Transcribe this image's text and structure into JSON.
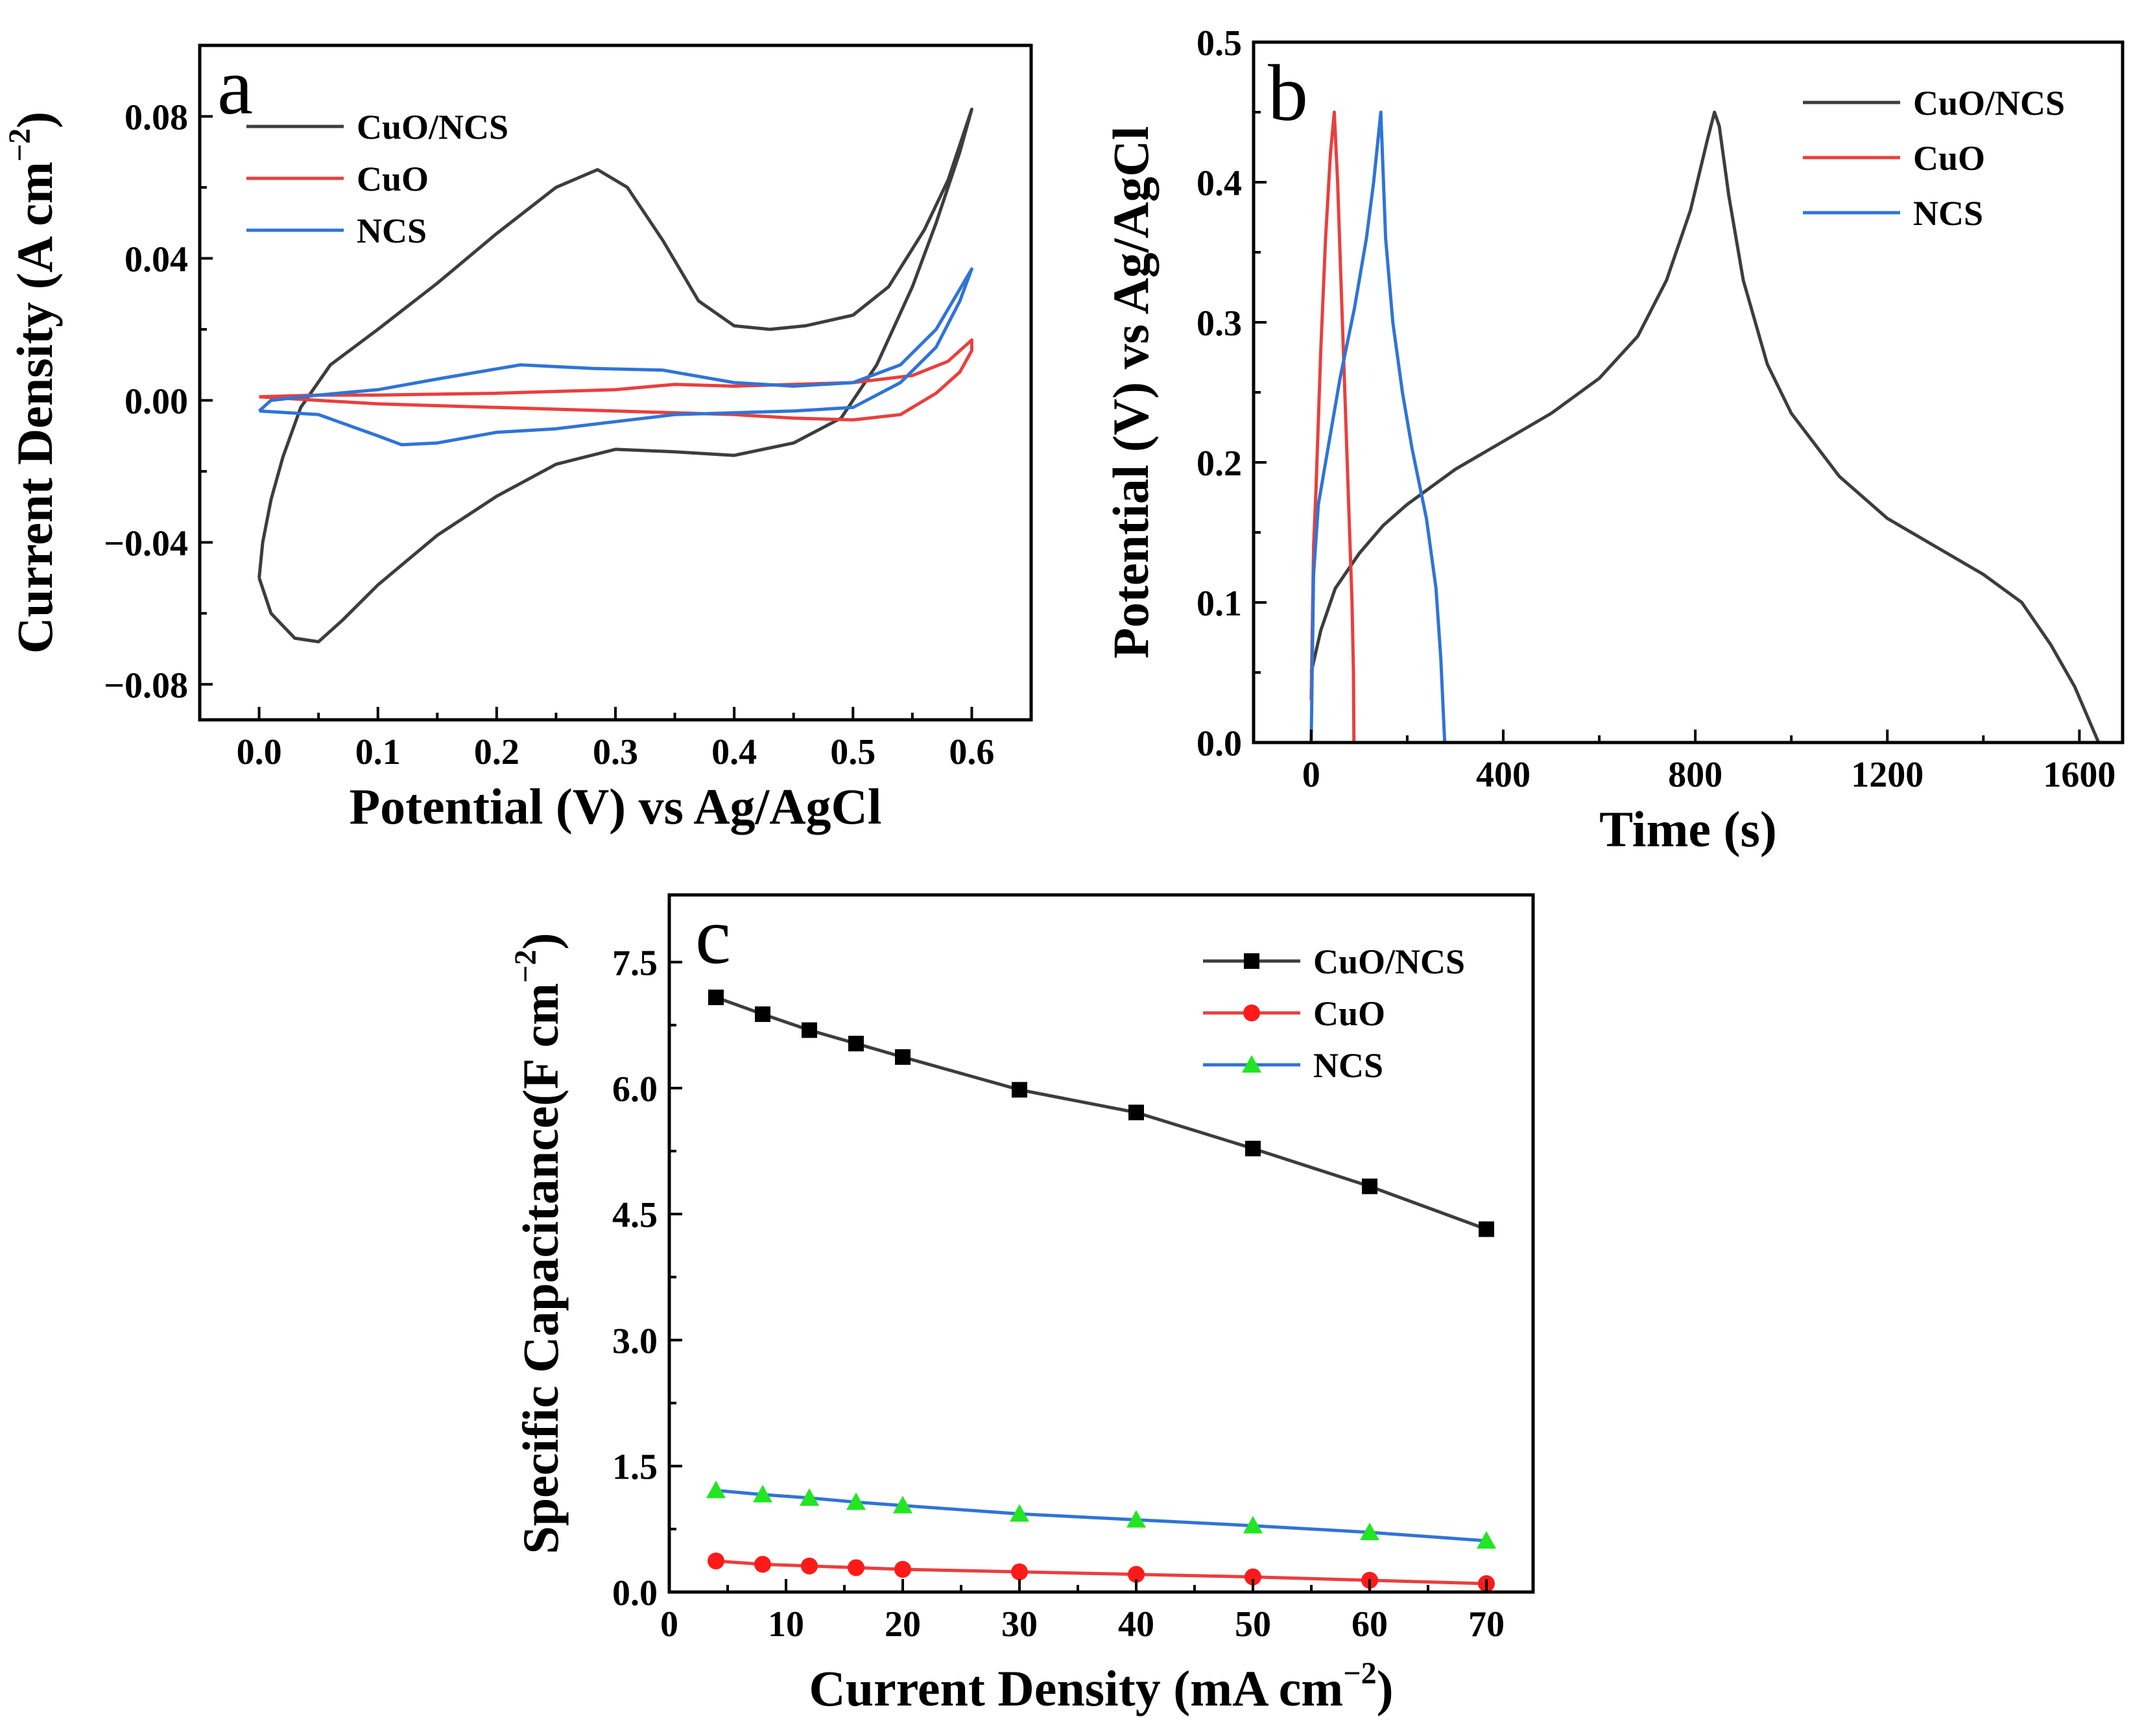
{
  "figure_title": "",
  "chart_data": [
    {
      "id": "a",
      "type": "line",
      "panel_label": "a",
      "title": "",
      "xlabel": "Potential (V) vs Ag/AgCl",
      "ylabel": "Current Density (A cm",
      "ylabel_sup": "−2",
      "ylabel_close": ")",
      "xlim": [
        -0.05,
        0.65
      ],
      "ylim": [
        -0.09,
        0.1
      ],
      "xticks": [
        0.0,
        0.1,
        0.2,
        0.3,
        0.4,
        0.5,
        0.6
      ],
      "xtick_labels": [
        "0.0",
        "0.1",
        "0.2",
        "0.3",
        "0.4",
        "0.5",
        "0.6"
      ],
      "yticks": [
        -0.08,
        -0.04,
        0.0,
        0.04,
        0.08
      ],
      "ytick_labels": [
        "−0.08",
        "−0.04",
        "0.00",
        "0.04",
        "0.08"
      ],
      "grid": false,
      "legend_position": "top-left",
      "series": [
        {
          "name": "CuO/NCS",
          "color": "#3d3d3d",
          "points": [
            [
              0.0,
              -0.05
            ],
            [
              0.003,
              -0.04
            ],
            [
              0.01,
              -0.028
            ],
            [
              0.02,
              -0.016
            ],
            [
              0.035,
              -0.002
            ],
            [
              0.06,
              0.01
            ],
            [
              0.1,
              0.02
            ],
            [
              0.15,
              0.033
            ],
            [
              0.2,
              0.047
            ],
            [
              0.25,
              0.06
            ],
            [
              0.285,
              0.065
            ],
            [
              0.31,
              0.06
            ],
            [
              0.34,
              0.045
            ],
            [
              0.37,
              0.028
            ],
            [
              0.4,
              0.021
            ],
            [
              0.43,
              0.02
            ],
            [
              0.46,
              0.021
            ],
            [
              0.5,
              0.024
            ],
            [
              0.53,
              0.032
            ],
            [
              0.56,
              0.048
            ],
            [
              0.58,
              0.062
            ],
            [
              0.6,
              0.082
            ],
            [
              0.59,
              0.07
            ],
            [
              0.57,
              0.05
            ],
            [
              0.55,
              0.032
            ],
            [
              0.52,
              0.01
            ],
            [
              0.49,
              -0.005
            ],
            [
              0.45,
              -0.012
            ],
            [
              0.4,
              -0.0155
            ],
            [
              0.35,
              -0.0145
            ],
            [
              0.3,
              -0.0138
            ],
            [
              0.25,
              -0.018
            ],
            [
              0.2,
              -0.027
            ],
            [
              0.15,
              -0.038
            ],
            [
              0.1,
              -0.052
            ],
            [
              0.07,
              -0.062
            ],
            [
              0.05,
              -0.068
            ],
            [
              0.03,
              -0.067
            ],
            [
              0.01,
              -0.06
            ],
            [
              0.0,
              -0.05
            ]
          ]
        },
        {
          "name": "CuO",
          "color": "#e8403e",
          "points": [
            [
              0.0,
              0.001
            ],
            [
              0.05,
              0.0015
            ],
            [
              0.1,
              0.0015
            ],
            [
              0.2,
              0.002
            ],
            [
              0.3,
              0.003
            ],
            [
              0.35,
              0.0045
            ],
            [
              0.4,
              0.004
            ],
            [
              0.45,
              0.0045
            ],
            [
              0.5,
              0.005
            ],
            [
              0.55,
              0.007
            ],
            [
              0.58,
              0.011
            ],
            [
              0.6,
              0.017
            ],
            [
              0.6,
              0.014
            ],
            [
              0.59,
              0.008
            ],
            [
              0.57,
              0.002
            ],
            [
              0.54,
              -0.004
            ],
            [
              0.5,
              -0.0055
            ],
            [
              0.45,
              -0.005
            ],
            [
              0.4,
              -0.004
            ],
            [
              0.3,
              -0.003
            ],
            [
              0.2,
              -0.002
            ],
            [
              0.1,
              -0.001
            ],
            [
              0.05,
              0.0
            ],
            [
              0.0,
              0.001
            ]
          ]
        },
        {
          "name": "NCS",
          "color": "#2f74d6",
          "points": [
            [
              0.0,
              -0.003
            ],
            [
              0.01,
              0.0
            ],
            [
              0.05,
              0.0015
            ],
            [
              0.1,
              0.003
            ],
            [
              0.15,
              0.006
            ],
            [
              0.22,
              0.01
            ],
            [
              0.28,
              0.009
            ],
            [
              0.34,
              0.0085
            ],
            [
              0.4,
              0.005
            ],
            [
              0.45,
              0.004
            ],
            [
              0.5,
              0.005
            ],
            [
              0.54,
              0.01
            ],
            [
              0.57,
              0.02
            ],
            [
              0.6,
              0.037
            ],
            [
              0.59,
              0.028
            ],
            [
              0.57,
              0.015
            ],
            [
              0.54,
              0.005
            ],
            [
              0.5,
              -0.002
            ],
            [
              0.45,
              -0.003
            ],
            [
              0.4,
              -0.0035
            ],
            [
              0.35,
              -0.004
            ],
            [
              0.3,
              -0.006
            ],
            [
              0.25,
              -0.008
            ],
            [
              0.2,
              -0.009
            ],
            [
              0.15,
              -0.012
            ],
            [
              0.12,
              -0.0125
            ],
            [
              0.1,
              -0.01
            ],
            [
              0.05,
              -0.004
            ],
            [
              0.0,
              -0.003
            ]
          ]
        }
      ]
    },
    {
      "id": "b",
      "type": "line",
      "panel_label": "b",
      "title": "",
      "xlabel": "Time (s)",
      "ylabel": "Potential (V) vs Ag/AgCl",
      "xlim": [
        -120,
        1690
      ],
      "ylim": [
        0.0,
        0.5
      ],
      "xticks": [
        0,
        400,
        800,
        1200,
        1600
      ],
      "xtick_labels": [
        "0",
        "400",
        "800",
        "1200",
        "1600"
      ],
      "yticks": [
        0.0,
        0.1,
        0.2,
        0.3,
        0.4,
        0.5
      ],
      "ytick_labels": [
        "0.0",
        "0.1",
        "0.2",
        "0.3",
        "0.4",
        "0.5"
      ],
      "grid": false,
      "legend_position": "top-right",
      "series": [
        {
          "name": "CuO/NCS",
          "color": "#3d3d3d",
          "points": [
            [
              0,
              0.05
            ],
            [
              20,
              0.08
            ],
            [
              50,
              0.11
            ],
            [
              100,
              0.135
            ],
            [
              150,
              0.155
            ],
            [
              200,
              0.17
            ],
            [
              300,
              0.195
            ],
            [
              400,
              0.215
            ],
            [
              500,
              0.235
            ],
            [
              600,
              0.26
            ],
            [
              680,
              0.29
            ],
            [
              740,
              0.33
            ],
            [
              790,
              0.38
            ],
            [
              825,
              0.43
            ],
            [
              840,
              0.45
            ],
            [
              850,
              0.44
            ],
            [
              870,
              0.39
            ],
            [
              900,
              0.33
            ],
            [
              950,
              0.27
            ],
            [
              1000,
              0.235
            ],
            [
              1100,
              0.19
            ],
            [
              1200,
              0.16
            ],
            [
              1300,
              0.14
            ],
            [
              1400,
              0.12
            ],
            [
              1480,
              0.1
            ],
            [
              1540,
              0.07
            ],
            [
              1590,
              0.04
            ],
            [
              1640,
              0.0
            ]
          ]
        },
        {
          "name": "CuO",
          "color": "#e8403e",
          "points": [
            [
              0,
              0.03
            ],
            [
              5,
              0.14
            ],
            [
              10,
              0.18
            ],
            [
              20,
              0.28
            ],
            [
              30,
              0.36
            ],
            [
              40,
              0.42
            ],
            [
              48,
              0.45
            ],
            [
              55,
              0.4
            ],
            [
              62,
              0.33
            ],
            [
              70,
              0.25
            ],
            [
              78,
              0.17
            ],
            [
              85,
              0.1
            ],
            [
              88,
              0.05
            ],
            [
              89,
              0.0
            ]
          ]
        },
        {
          "name": "NCS",
          "color": "#2f74d6",
          "points": [
            [
              0,
              0.0
            ],
            [
              5,
              0.12
            ],
            [
              15,
              0.17
            ],
            [
              30,
              0.2
            ],
            [
              60,
              0.26
            ],
            [
              90,
              0.31
            ],
            [
              115,
              0.36
            ],
            [
              130,
              0.4
            ],
            [
              145,
              0.45
            ],
            [
              155,
              0.36
            ],
            [
              170,
              0.3
            ],
            [
              190,
              0.25
            ],
            [
              210,
              0.21
            ],
            [
              240,
              0.16
            ],
            [
              260,
              0.11
            ],
            [
              270,
              0.06
            ],
            [
              278,
              0.0
            ]
          ]
        }
      ]
    },
    {
      "id": "c",
      "type": "line",
      "panel_label": "c",
      "title": "",
      "xlabel": "Current Density (mA cm",
      "xlabel_sup": "−2",
      "xlabel_close": ")",
      "ylabel": "Specific Capacitance(F cm",
      "ylabel_sup": "−2",
      "ylabel_close": ")",
      "xlim": [
        0,
        74
      ],
      "ylim": [
        0,
        8.3
      ],
      "xticks": [
        0,
        10,
        20,
        30,
        40,
        50,
        60,
        70
      ],
      "xtick_labels": [
        "0",
        "10",
        "20",
        "30",
        "40",
        "50",
        "60",
        "70"
      ],
      "yticks": [
        0.0,
        1.5,
        3.0,
        4.5,
        6.0,
        7.5
      ],
      "ytick_labels": [
        "0.0",
        "1.5",
        "3.0",
        "4.5",
        "6.0",
        "7.5"
      ],
      "grid": false,
      "legend_position": "top-right",
      "x": [
        4,
        8,
        12,
        16,
        20,
        30,
        40,
        50,
        60,
        70
      ],
      "series": [
        {
          "name": "CuO/NCS",
          "color": "#3d3d3d",
          "marker": "square",
          "marker_color": "#000000",
          "values": [
            7.08,
            6.88,
            6.69,
            6.53,
            6.37,
            5.98,
            5.71,
            5.28,
            4.83,
            4.32
          ]
        },
        {
          "name": "CuO",
          "color": "#e8403e",
          "marker": "circle",
          "marker_color": "#ff1a1a",
          "values": [
            0.37,
            0.33,
            0.31,
            0.29,
            0.27,
            0.24,
            0.21,
            0.18,
            0.14,
            0.1
          ]
        },
        {
          "name": "NCS",
          "color": "#2f74d6",
          "marker": "triangle",
          "marker_color": "#22e622",
          "values": [
            1.21,
            1.16,
            1.12,
            1.07,
            1.03,
            0.93,
            0.86,
            0.79,
            0.71,
            0.61
          ]
        }
      ]
    }
  ]
}
